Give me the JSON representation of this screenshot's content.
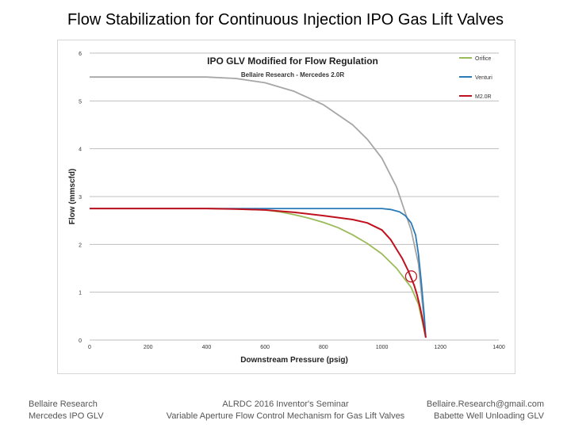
{
  "slide": {
    "title": "Flow Stabilization for Continuous Injection IPO Gas Lift Valves"
  },
  "footer": {
    "left": [
      "Bellaire Research",
      "Mercedes IPO GLV"
    ],
    "center": [
      "ALRDC 2016 Inventor's Seminar",
      "Variable Aperture Flow Control Mechanism for Gas Lift Valves"
    ],
    "right": [
      "Bellaire.Research@gmail.com",
      "Babette Well Unloading GLV"
    ]
  },
  "chart_data": {
    "type": "line",
    "title": "IPO GLV Modified for Flow Regulation",
    "subtitle": "Bellaire Research - Mercedes 2.0R",
    "xlabel": "Downstream Pressure (psig)",
    "ylabel": "Flow (mmscfd)",
    "xlim": [
      0,
      1400
    ],
    "ylim": [
      0,
      6
    ],
    "xticks": [
      "0",
      "200",
      "400",
      "600",
      "800",
      "1000",
      "1200",
      "1400"
    ],
    "yticks": [
      "0",
      "1",
      "2",
      "3",
      "4",
      "5",
      "6"
    ],
    "grid": "horizontal",
    "legend_position": "top-right",
    "series": [
      {
        "name": "Orifice",
        "color": "#9bbb59",
        "points": [
          [
            0,
            2.75
          ],
          [
            200,
            2.75
          ],
          [
            400,
            2.75
          ],
          [
            500,
            2.74
          ],
          [
            550,
            2.73
          ],
          [
            600,
            2.72
          ],
          [
            650,
            2.68
          ],
          [
            700,
            2.62
          ],
          [
            750,
            2.55
          ],
          [
            800,
            2.46
          ],
          [
            850,
            2.35
          ],
          [
            900,
            2.2
          ],
          [
            950,
            2.02
          ],
          [
            1000,
            1.8
          ],
          [
            1050,
            1.5
          ],
          [
            1100,
            1.1
          ],
          [
            1125,
            0.75
          ],
          [
            1150,
            0.05
          ]
        ]
      },
      {
        "name": "Venturi",
        "color": "#2a7ab8",
        "points": [
          [
            0,
            2.75
          ],
          [
            200,
            2.75
          ],
          [
            400,
            2.75
          ],
          [
            600,
            2.75
          ],
          [
            800,
            2.75
          ],
          [
            1000,
            2.75
          ],
          [
            1030,
            2.73
          ],
          [
            1060,
            2.68
          ],
          [
            1080,
            2.6
          ],
          [
            1100,
            2.45
          ],
          [
            1115,
            2.2
          ],
          [
            1125,
            1.8
          ],
          [
            1135,
            1.2
          ],
          [
            1145,
            0.5
          ],
          [
            1150,
            0.05
          ]
        ]
      },
      {
        "name": "M2.0R",
        "color": "#c0111f",
        "points": [
          [
            0,
            2.75
          ],
          [
            200,
            2.75
          ],
          [
            400,
            2.75
          ],
          [
            500,
            2.74
          ],
          [
            600,
            2.72
          ],
          [
            700,
            2.67
          ],
          [
            800,
            2.6
          ],
          [
            900,
            2.52
          ],
          [
            950,
            2.45
          ],
          [
            1000,
            2.3
          ],
          [
            1030,
            2.1
          ],
          [
            1050,
            1.9
          ],
          [
            1070,
            1.7
          ],
          [
            1090,
            1.45
          ],
          [
            1100,
            1.3
          ],
          [
            1110,
            1.15
          ],
          [
            1120,
            0.95
          ],
          [
            1130,
            0.7
          ],
          [
            1140,
            0.4
          ],
          [
            1150,
            0.05
          ]
        ]
      },
      {
        "name": "",
        "color": "#a6a6a6",
        "points": [
          [
            0,
            5.5
          ],
          [
            200,
            5.5
          ],
          [
            400,
            5.5
          ],
          [
            500,
            5.47
          ],
          [
            600,
            5.38
          ],
          [
            700,
            5.2
          ],
          [
            800,
            4.92
          ],
          [
            900,
            4.5
          ],
          [
            950,
            4.2
          ],
          [
            1000,
            3.8
          ],
          [
            1050,
            3.2
          ],
          [
            1100,
            2.3
          ],
          [
            1125,
            1.6
          ],
          [
            1150,
            0.05
          ]
        ]
      }
    ],
    "annotation": {
      "shape": "circle",
      "x": 1100,
      "y": 1.33
    }
  }
}
